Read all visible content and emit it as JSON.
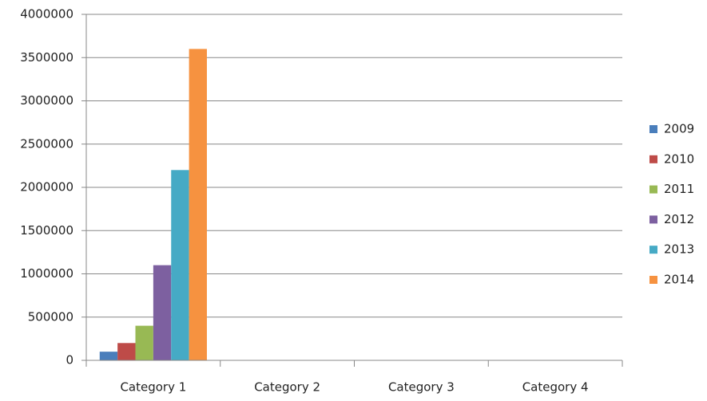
{
  "chart_data": {
    "type": "bar",
    "categories": [
      "Category 1",
      "Category 2",
      "Category 3",
      "Category 4"
    ],
    "series": [
      {
        "name": "2009",
        "color": "#4a7ebb",
        "values": [
          100000,
          null,
          null,
          null
        ]
      },
      {
        "name": "2010",
        "color": "#be4b48",
        "values": [
          200000,
          null,
          null,
          null
        ]
      },
      {
        "name": "2011",
        "color": "#98b954",
        "values": [
          400000,
          null,
          null,
          null
        ]
      },
      {
        "name": "2012",
        "color": "#7d60a0",
        "values": [
          1100000,
          null,
          null,
          null
        ]
      },
      {
        "name": "2013",
        "color": "#46aac5",
        "values": [
          2200000,
          null,
          null,
          null
        ]
      },
      {
        "name": "2014",
        "color": "#f69240",
        "values": [
          3600000,
          null,
          null,
          null
        ]
      }
    ],
    "ylim": [
      0,
      4000000
    ],
    "yticks": [
      0,
      500000,
      1000000,
      1500000,
      2000000,
      2500000,
      3000000,
      3500000,
      4000000
    ],
    "grid": true,
    "legend": "right"
  }
}
